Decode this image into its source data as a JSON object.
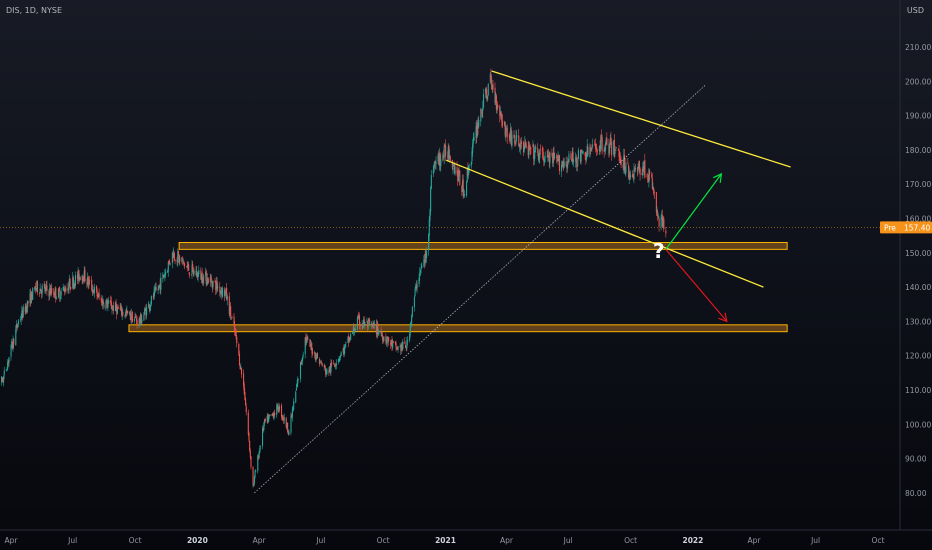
{
  "header": {
    "symbol": "DIS, 1D, NYSE",
    "currency": "USD"
  },
  "annotation": {
    "question_mark": "?"
  },
  "price_badge": {
    "label": "Pre",
    "value": "157.40",
    "color": "#f7931a"
  },
  "colors": {
    "up_candle": "#26a69a",
    "down_candle": "#ef5350",
    "channel": "#ffeb3b",
    "zone_border": "#ffb300",
    "zone_fill": "#a86b1f",
    "trendline": "#d1d4dc",
    "arrow_up": "#00e640",
    "arrow_down": "#e0171b"
  },
  "chart_data": {
    "type": "candlestick",
    "y_axis": {
      "ticks": [
        "210.00",
        "200.00",
        "190.00",
        "180.00",
        "170.00",
        "160.00",
        "150.00",
        "140.00",
        "130.00",
        "120.00",
        "110.00",
        "100.00",
        "90.00",
        "80.00"
      ],
      "range": [
        75,
        215
      ]
    },
    "x_axis": {
      "ticks": [
        {
          "label": "Apr",
          "year": false
        },
        {
          "label": "Jul",
          "year": false
        },
        {
          "label": "Oct",
          "year": false
        },
        {
          "label": "2020",
          "year": true
        },
        {
          "label": "Apr",
          "year": false
        },
        {
          "label": "Jul",
          "year": false
        },
        {
          "label": "Oct",
          "year": false
        },
        {
          "label": "2021",
          "year": true
        },
        {
          "label": "Apr",
          "year": false
        },
        {
          "label": "Jul",
          "year": false
        },
        {
          "label": "Oct",
          "year": false
        },
        {
          "label": "2022",
          "year": true
        },
        {
          "label": "Apr",
          "year": false
        },
        {
          "label": "Jul",
          "year": false
        },
        {
          "label": "Oct",
          "year": false
        }
      ]
    },
    "price_path": [
      {
        "d": "2019-02-18",
        "p": 110
      },
      {
        "d": "2019-03-20",
        "p": 113
      },
      {
        "d": "2019-04-12",
        "p": 130
      },
      {
        "d": "2019-05-08",
        "p": 140
      },
      {
        "d": "2019-06-10",
        "p": 138
      },
      {
        "d": "2019-07-15",
        "p": 144
      },
      {
        "d": "2019-08-12",
        "p": 136
      },
      {
        "d": "2019-09-10",
        "p": 133
      },
      {
        "d": "2019-10-08",
        "p": 130
      },
      {
        "d": "2019-11-05",
        "p": 140
      },
      {
        "d": "2019-11-26",
        "p": 150
      },
      {
        "d": "2019-12-20",
        "p": 145
      },
      {
        "d": "2020-01-20",
        "p": 142
      },
      {
        "d": "2020-02-12",
        "p": 138
      },
      {
        "d": "2020-02-26",
        "p": 126
      },
      {
        "d": "2020-03-10",
        "p": 110
      },
      {
        "d": "2020-03-23",
        "p": 82
      },
      {
        "d": "2020-04-08",
        "p": 100
      },
      {
        "d": "2020-04-30",
        "p": 105
      },
      {
        "d": "2020-05-15",
        "p": 98
      },
      {
        "d": "2020-06-08",
        "p": 125
      },
      {
        "d": "2020-07-10",
        "p": 115
      },
      {
        "d": "2020-08-05",
        "p": 122
      },
      {
        "d": "2020-08-25",
        "p": 130
      },
      {
        "d": "2020-09-20",
        "p": 128
      },
      {
        "d": "2020-10-20",
        "p": 122
      },
      {
        "d": "2020-11-05",
        "p": 123
      },
      {
        "d": "2020-11-20",
        "p": 142
      },
      {
        "d": "2020-12-05",
        "p": 150
      },
      {
        "d": "2020-12-12",
        "p": 175
      },
      {
        "d": "2021-01-05",
        "p": 180
      },
      {
        "d": "2021-01-28",
        "p": 168
      },
      {
        "d": "2021-02-20",
        "p": 190
      },
      {
        "d": "2021-03-08",
        "p": 200
      },
      {
        "d": "2021-04-01",
        "p": 185
      },
      {
        "d": "2021-05-01",
        "p": 180
      },
      {
        "d": "2021-05-25",
        "p": 178
      },
      {
        "d": "2021-06-20",
        "p": 176
      },
      {
        "d": "2021-07-20",
        "p": 178
      },
      {
        "d": "2021-08-20",
        "p": 182
      },
      {
        "d": "2021-09-10",
        "p": 180
      },
      {
        "d": "2021-10-01",
        "p": 173
      },
      {
        "d": "2021-10-20",
        "p": 175
      },
      {
        "d": "2021-11-02",
        "p": 170
      },
      {
        "d": "2021-11-10",
        "p": 160
      },
      {
        "d": "2021-11-22",
        "p": 157.4
      }
    ],
    "drawings": {
      "channel_upper": [
        {
          "d": "2021-03-10",
          "p": 203
        },
        {
          "d": "2022-05-25",
          "p": 175
        }
      ],
      "channel_lower": [
        {
          "d": "2021-01-02",
          "p": 177
        },
        {
          "d": "2022-04-15",
          "p": 140
        }
      ],
      "trendline": [
        {
          "d": "2020-03-25",
          "p": 80
        },
        {
          "d": "2022-01-20",
          "p": 199
        }
      ],
      "zone_upper": [
        {
          "d": "2019-12-05",
          "p": 153
        },
        {
          "d": "2022-05-20",
          "p": 151
        }
      ],
      "zone_lower": [
        {
          "d": "2019-09-22",
          "p": 129
        },
        {
          "d": "2022-05-20",
          "p": 127
        }
      ],
      "arrow_up": [
        {
          "d": "2021-11-22",
          "p": 151
        },
        {
          "d": "2022-02-12",
          "p": 173
        }
      ],
      "arrow_down": [
        {
          "d": "2021-11-22",
          "p": 151
        },
        {
          "d": "2022-02-20",
          "p": 130
        }
      ]
    }
  }
}
